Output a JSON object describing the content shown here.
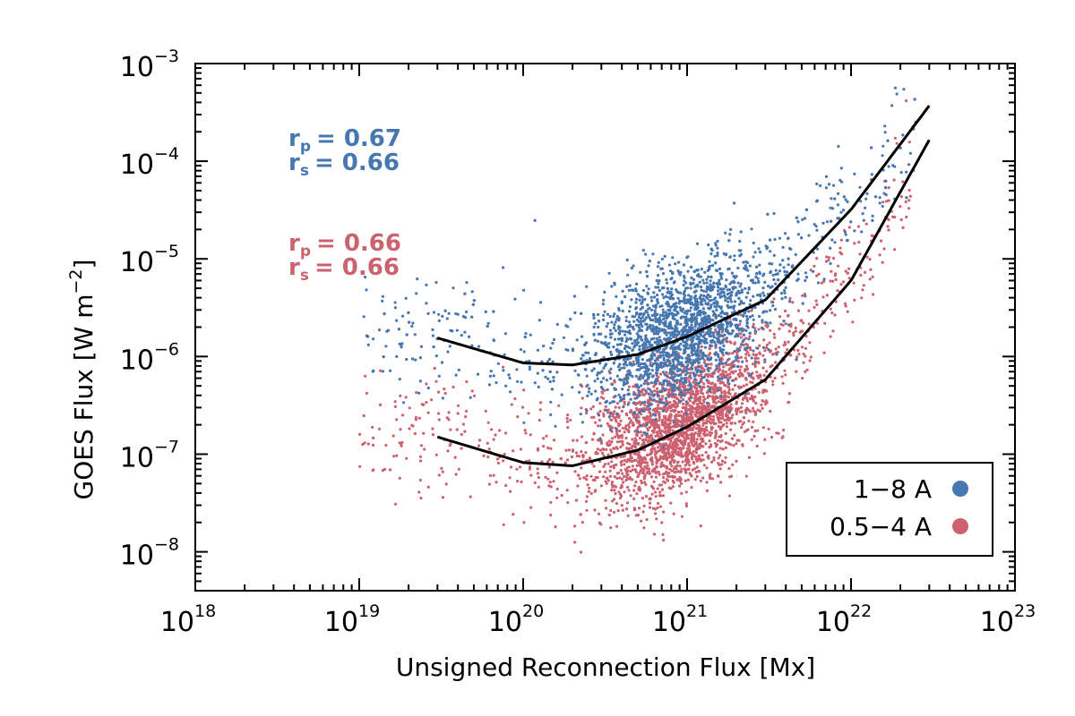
{
  "chart_data": {
    "type": "scatter",
    "title": "",
    "xlabel": "Unsigned Reconnection Flux [Mx]",
    "ylabel_main": "GOES Flux [W m",
    "ylabel_exp": "−2",
    "ylabel_end": "]",
    "xscale": "log",
    "yscale": "log",
    "xlim": [
      1e+18,
      1e+23
    ],
    "ylim": [
      4e-09,
      0.001
    ],
    "x_ticks": [
      {
        "base": "10",
        "exp": "18",
        "value": 1e+18
      },
      {
        "base": "10",
        "exp": "19",
        "value": 1e+19
      },
      {
        "base": "10",
        "exp": "20",
        "value": 1e+20
      },
      {
        "base": "10",
        "exp": "21",
        "value": 1e+21
      },
      {
        "base": "10",
        "exp": "22",
        "value": 1e+22
      },
      {
        "base": "10",
        "exp": "23",
        "value": 1e+23
      }
    ],
    "y_ticks": [
      {
        "base": "10",
        "exp": "−8",
        "value": 1e-08
      },
      {
        "base": "10",
        "exp": "−7",
        "value": 1e-07
      },
      {
        "base": "10",
        "exp": "−6",
        "value": 1e-06
      },
      {
        "base": "10",
        "exp": "−5",
        "value": 1e-05
      },
      {
        "base": "10",
        "exp": "−4",
        "value": 0.0001
      },
      {
        "base": "10",
        "exp": "−3",
        "value": 0.001
      }
    ],
    "series": [
      {
        "name": "1−8 A",
        "color": "#4777b0",
        "n_points": 2600,
        "fit_curve": {
          "x": [
            3e+19,
            1e+20,
            2e+20,
            5e+20,
            1e+21,
            3e+21,
            1e+22,
            3e+22
          ],
          "y": [
            1.55e-06,
            8.6e-07,
            8.2e-07,
            1.05e-06,
            1.6e-06,
            3.8e-06,
            3.2e-05,
            0.00037
          ]
        },
        "stats": {
          "rp_label": "r",
          "rp_sub": "p",
          "rp_value": "= 0.67",
          "rs_label": "r",
          "rs_sub": "s",
          "rs_value": "= 0.66"
        }
      },
      {
        "name": "0.5−4 A",
        "color": "#cc6170",
        "n_points": 2600,
        "fit_curve": {
          "x": [
            3e+19,
            1e+20,
            2e+20,
            5e+20,
            1e+21,
            3e+21,
            1e+22,
            3e+22
          ],
          "y": [
            1.5e-07,
            8.2e-08,
            7.6e-08,
            1.1e-07,
            1.9e-07,
            5.8e-07,
            6e-06,
            0.000165
          ]
        },
        "stats": {
          "rp_label": "r",
          "rp_sub": "p",
          "rp_value": "= 0.66",
          "rs_label": "r",
          "rs_sub": "s",
          "rs_value": "= 0.66"
        }
      }
    ],
    "legend_position": "bottom-right"
  }
}
